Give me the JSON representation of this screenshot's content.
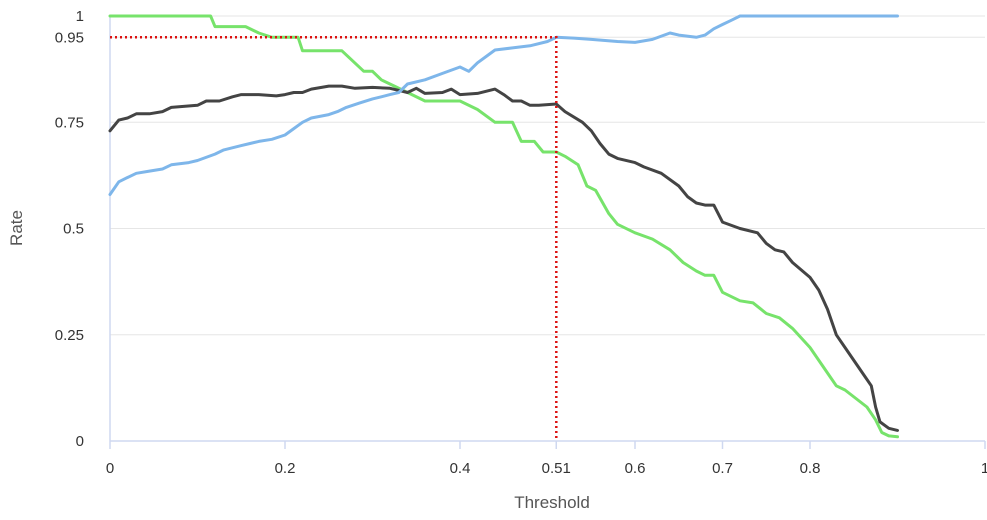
{
  "chart_data": {
    "type": "line",
    "title": "",
    "xlabel": "Threshold",
    "ylabel": "Rate",
    "xlim": [
      0,
      1
    ],
    "ylim": [
      0,
      1
    ],
    "x_ticks": [
      {
        "value": 0,
        "label": "0"
      },
      {
        "value": 0.2,
        "label": "0.2"
      },
      {
        "value": 0.4,
        "label": "0.4"
      },
      {
        "value": 0.51,
        "label": "0.51"
      },
      {
        "value": 0.6,
        "label": "0.6"
      },
      {
        "value": 0.7,
        "label": "0.7"
      },
      {
        "value": 0.8,
        "label": "0.8"
      },
      {
        "value": 1,
        "label": "1"
      }
    ],
    "y_ticks": [
      {
        "value": 0,
        "label": "0"
      },
      {
        "value": 0.25,
        "label": "0.25"
      },
      {
        "value": 0.5,
        "label": "0.5"
      },
      {
        "value": 0.75,
        "label": "0.75"
      },
      {
        "value": 0.95,
        "label": "0.95"
      },
      {
        "value": 1,
        "label": "1"
      }
    ],
    "grid": true,
    "legend": "none",
    "series": [
      {
        "color": "#77e36b",
        "points": [
          [
            0,
            1
          ],
          [
            0.115,
            1
          ],
          [
            0.12,
            0.975
          ],
          [
            0.155,
            0.975
          ],
          [
            0.17,
            0.96
          ],
          [
            0.185,
            0.95
          ],
          [
            0.215,
            0.95
          ],
          [
            0.22,
            0.918
          ],
          [
            0.265,
            0.918
          ],
          [
            0.29,
            0.87
          ],
          [
            0.3,
            0.87
          ],
          [
            0.31,
            0.85
          ],
          [
            0.325,
            0.835
          ],
          [
            0.345,
            0.815
          ],
          [
            0.36,
            0.8
          ],
          [
            0.4,
            0.8
          ],
          [
            0.42,
            0.78
          ],
          [
            0.44,
            0.75
          ],
          [
            0.46,
            0.75
          ],
          [
            0.47,
            0.705
          ],
          [
            0.485,
            0.705
          ],
          [
            0.495,
            0.68
          ],
          [
            0.51,
            0.68
          ],
          [
            0.52,
            0.67
          ],
          [
            0.535,
            0.65
          ],
          [
            0.545,
            0.6
          ],
          [
            0.555,
            0.59
          ],
          [
            0.57,
            0.535
          ],
          [
            0.58,
            0.51
          ],
          [
            0.6,
            0.49
          ],
          [
            0.62,
            0.475
          ],
          [
            0.64,
            0.45
          ],
          [
            0.655,
            0.42
          ],
          [
            0.67,
            0.4
          ],
          [
            0.68,
            0.39
          ],
          [
            0.69,
            0.39
          ],
          [
            0.7,
            0.35
          ],
          [
            0.72,
            0.33
          ],
          [
            0.735,
            0.325
          ],
          [
            0.75,
            0.3
          ],
          [
            0.765,
            0.29
          ],
          [
            0.78,
            0.265
          ],
          [
            0.8,
            0.22
          ],
          [
            0.82,
            0.16
          ],
          [
            0.83,
            0.13
          ],
          [
            0.84,
            0.12
          ],
          [
            0.865,
            0.08
          ],
          [
            0.875,
            0.05
          ],
          [
            0.882,
            0.02
          ],
          [
            0.89,
            0.012
          ],
          [
            0.9,
            0.01
          ]
        ]
      },
      {
        "color": "#444444",
        "points": [
          [
            0,
            0.73
          ],
          [
            0.01,
            0.755
          ],
          [
            0.02,
            0.76
          ],
          [
            0.03,
            0.77
          ],
          [
            0.045,
            0.77
          ],
          [
            0.06,
            0.775
          ],
          [
            0.07,
            0.785
          ],
          [
            0.1,
            0.79
          ],
          [
            0.11,
            0.8
          ],
          [
            0.125,
            0.8
          ],
          [
            0.14,
            0.81
          ],
          [
            0.15,
            0.815
          ],
          [
            0.17,
            0.815
          ],
          [
            0.19,
            0.812
          ],
          [
            0.2,
            0.815
          ],
          [
            0.21,
            0.82
          ],
          [
            0.22,
            0.82
          ],
          [
            0.23,
            0.828
          ],
          [
            0.25,
            0.835
          ],
          [
            0.265,
            0.835
          ],
          [
            0.28,
            0.83
          ],
          [
            0.3,
            0.832
          ],
          [
            0.32,
            0.83
          ],
          [
            0.34,
            0.82
          ],
          [
            0.35,
            0.83
          ],
          [
            0.36,
            0.818
          ],
          [
            0.38,
            0.82
          ],
          [
            0.39,
            0.828
          ],
          [
            0.4,
            0.815
          ],
          [
            0.42,
            0.818
          ],
          [
            0.44,
            0.828
          ],
          [
            0.45,
            0.815
          ],
          [
            0.46,
            0.8
          ],
          [
            0.47,
            0.8
          ],
          [
            0.48,
            0.79
          ],
          [
            0.49,
            0.79
          ],
          [
            0.51,
            0.793
          ],
          [
            0.52,
            0.775
          ],
          [
            0.54,
            0.75
          ],
          [
            0.55,
            0.73
          ],
          [
            0.56,
            0.7
          ],
          [
            0.57,
            0.675
          ],
          [
            0.58,
            0.665
          ],
          [
            0.6,
            0.655
          ],
          [
            0.61,
            0.645
          ],
          [
            0.63,
            0.63
          ],
          [
            0.65,
            0.6
          ],
          [
            0.66,
            0.575
          ],
          [
            0.67,
            0.56
          ],
          [
            0.68,
            0.555
          ],
          [
            0.69,
            0.555
          ],
          [
            0.7,
            0.515
          ],
          [
            0.72,
            0.5
          ],
          [
            0.74,
            0.49
          ],
          [
            0.75,
            0.465
          ],
          [
            0.76,
            0.45
          ],
          [
            0.77,
            0.445
          ],
          [
            0.78,
            0.42
          ],
          [
            0.8,
            0.385
          ],
          [
            0.81,
            0.355
          ],
          [
            0.82,
            0.31
          ],
          [
            0.83,
            0.25
          ],
          [
            0.84,
            0.22
          ],
          [
            0.86,
            0.16
          ],
          [
            0.87,
            0.13
          ],
          [
            0.875,
            0.08
          ],
          [
            0.88,
            0.045
          ],
          [
            0.89,
            0.03
          ],
          [
            0.9,
            0.025
          ]
        ]
      },
      {
        "color": "#7eb6ea",
        "points": [
          [
            0,
            0.58
          ],
          [
            0.01,
            0.61
          ],
          [
            0.02,
            0.62
          ],
          [
            0.03,
            0.63
          ],
          [
            0.045,
            0.635
          ],
          [
            0.06,
            0.64
          ],
          [
            0.07,
            0.65
          ],
          [
            0.09,
            0.655
          ],
          [
            0.1,
            0.66
          ],
          [
            0.12,
            0.675
          ],
          [
            0.13,
            0.685
          ],
          [
            0.15,
            0.695
          ],
          [
            0.16,
            0.7
          ],
          [
            0.17,
            0.705
          ],
          [
            0.185,
            0.71
          ],
          [
            0.2,
            0.72
          ],
          [
            0.21,
            0.735
          ],
          [
            0.22,
            0.75
          ],
          [
            0.23,
            0.76
          ],
          [
            0.25,
            0.768
          ],
          [
            0.26,
            0.775
          ],
          [
            0.27,
            0.785
          ],
          [
            0.285,
            0.795
          ],
          [
            0.3,
            0.805
          ],
          [
            0.31,
            0.81
          ],
          [
            0.32,
            0.815
          ],
          [
            0.33,
            0.82
          ],
          [
            0.34,
            0.84
          ],
          [
            0.36,
            0.85
          ],
          [
            0.38,
            0.865
          ],
          [
            0.4,
            0.88
          ],
          [
            0.41,
            0.87
          ],
          [
            0.42,
            0.89
          ],
          [
            0.43,
            0.905
          ],
          [
            0.44,
            0.92
          ],
          [
            0.46,
            0.925
          ],
          [
            0.48,
            0.93
          ],
          [
            0.5,
            0.94
          ],
          [
            0.51,
            0.95
          ],
          [
            0.53,
            0.948
          ],
          [
            0.55,
            0.945
          ],
          [
            0.58,
            0.94
          ],
          [
            0.6,
            0.938
          ],
          [
            0.62,
            0.945
          ],
          [
            0.64,
            0.96
          ],
          [
            0.65,
            0.955
          ],
          [
            0.67,
            0.95
          ],
          [
            0.68,
            0.955
          ],
          [
            0.69,
            0.97
          ],
          [
            0.7,
            0.98
          ],
          [
            0.71,
            0.99
          ],
          [
            0.72,
            1
          ],
          [
            0.9,
            1
          ]
        ]
      },
      {
        "color": "#dd1111",
        "points": [
          [
            0,
            0.95
          ],
          [
            0.51,
            0.95
          ],
          [
            0.51,
            0
          ]
        ]
      }
    ]
  }
}
